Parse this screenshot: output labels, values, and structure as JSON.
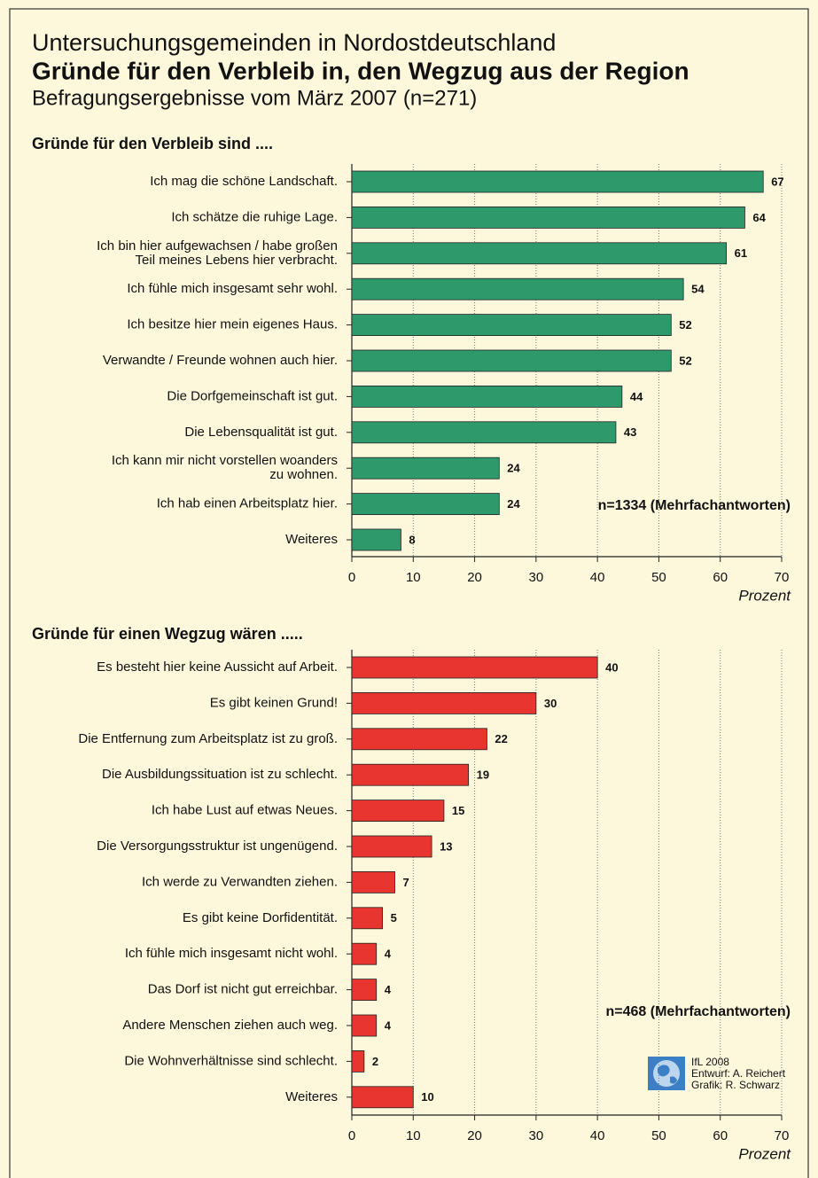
{
  "header": {
    "supertitle": "Untersuchungsgemeinden in Nordostdeutschland",
    "title": "Gründe für den Verbleib in, den Wegzug aus der Region",
    "subtitle": "Befragungsergebnisse vom März 2007 (n=271)"
  },
  "credits": [
    "IfL 2008",
    "Entwurf: A. Reichert",
    "Grafik: R. Schwarz"
  ],
  "chart_data": [
    {
      "type": "barh",
      "title": "Gründe für den Verbleib sind ....",
      "categories": [
        "Ich mag die schöne Landschaft.",
        "Ich schätze die ruhige Lage.",
        "Ich bin hier aufgewachsen / habe großen\nTeil meines Lebens hier verbracht.",
        "Ich fühle mich insgesamt sehr wohl.",
        "Ich besitze hier mein eigenes Haus.",
        "Verwandte / Freunde wohnen auch hier.",
        "Die Dorfgemeinschaft ist gut.",
        "Die Lebensqualität ist gut.",
        "Ich kann mir nicht vorstellen woanders\nzu wohnen.",
        "Ich hab einen Arbeitsplatz hier.",
        "Weiteres"
      ],
      "values": [
        67,
        64,
        61,
        54,
        52,
        52,
        44,
        43,
        24,
        24,
        8
      ],
      "color": "#2e9a6c",
      "xlim": [
        0,
        70
      ],
      "xticks": [
        0,
        10,
        20,
        30,
        40,
        50,
        60,
        70
      ],
      "grid": true,
      "x_label": "Prozent",
      "annotation": "n=1334 (Mehrfachantworten)"
    },
    {
      "type": "barh",
      "title": "Gründe für einen Wegzug wären .....",
      "categories": [
        "Es besteht hier keine Aussicht auf Arbeit.",
        "Es gibt keinen Grund!",
        "Die Entfernung zum Arbeitsplatz ist zu groß.",
        "Die Ausbildungssituation ist zu schlecht.",
        "Ich habe Lust auf etwas Neues.",
        "Die Versorgungsstruktur ist ungenügend.",
        "Ich werde zu Verwandten ziehen.",
        "Es gibt keine Dorfidentität.",
        "Ich fühle mich insgesamt nicht wohl.",
        "Das Dorf ist nicht gut erreichbar.",
        "Andere Menschen ziehen auch weg.",
        "Die Wohnverhältnisse sind schlecht.",
        "Weiteres"
      ],
      "values": [
        40,
        30,
        22,
        19,
        15,
        13,
        7,
        5,
        4,
        4,
        4,
        2,
        10
      ],
      "color": "#e8352f",
      "xlim": [
        0,
        70
      ],
      "xticks": [
        0,
        10,
        20,
        30,
        40,
        50,
        60,
        70
      ],
      "grid": true,
      "x_label": "Prozent",
      "annotation": "n=468 (Mehrfachantworten)"
    }
  ]
}
